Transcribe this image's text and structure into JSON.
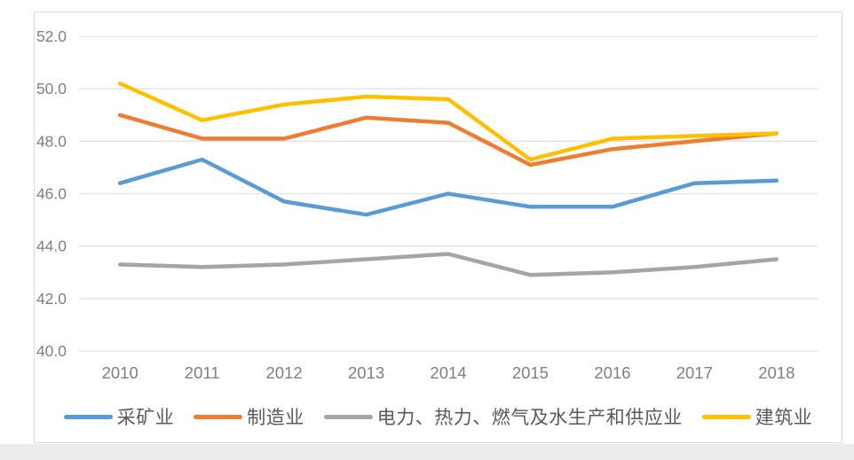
{
  "page": {
    "bottom_strip_color": "#ececec"
  },
  "chart": {
    "border_color": "#d9d9d9",
    "grid_color": "#e2e2e2",
    "tick_label_color": "#7f7f7f",
    "legend_text_color": "#595959"
  },
  "chart_data": {
    "type": "line",
    "title": "",
    "xlabel": "",
    "ylabel": "",
    "categories": [
      "2010",
      "2011",
      "2012",
      "2013",
      "2014",
      "2015",
      "2016",
      "2017",
      "2018"
    ],
    "series": [
      {
        "name": "采矿业",
        "color": "#5B9BD5",
        "values": [
          46.4,
          47.3,
          45.7,
          45.2,
          46.0,
          45.5,
          45.5,
          46.4,
          46.5
        ]
      },
      {
        "name": "制造业",
        "color": "#ED7D31",
        "values": [
          49.0,
          48.1,
          48.1,
          48.9,
          48.7,
          47.1,
          47.7,
          48.0,
          48.3
        ]
      },
      {
        "name": "电力、热力、燃气及水生产和供应业",
        "color": "#A5A5A5",
        "values": [
          43.3,
          43.2,
          43.3,
          43.5,
          43.7,
          42.9,
          43.0,
          43.2,
          43.5
        ]
      },
      {
        "name": "建筑业",
        "color": "#FFC000",
        "values": [
          50.2,
          48.8,
          49.4,
          49.7,
          49.6,
          47.3,
          48.1,
          48.2,
          48.3
        ]
      }
    ],
    "ylim": [
      40,
      52
    ],
    "ytick_step": 2,
    "ytick_labels": [
      "52.0",
      "50.0",
      "48.0",
      "46.0",
      "44.0",
      "42.0",
      "40.0"
    ],
    "grid": true,
    "legend_position": "bottom"
  }
}
